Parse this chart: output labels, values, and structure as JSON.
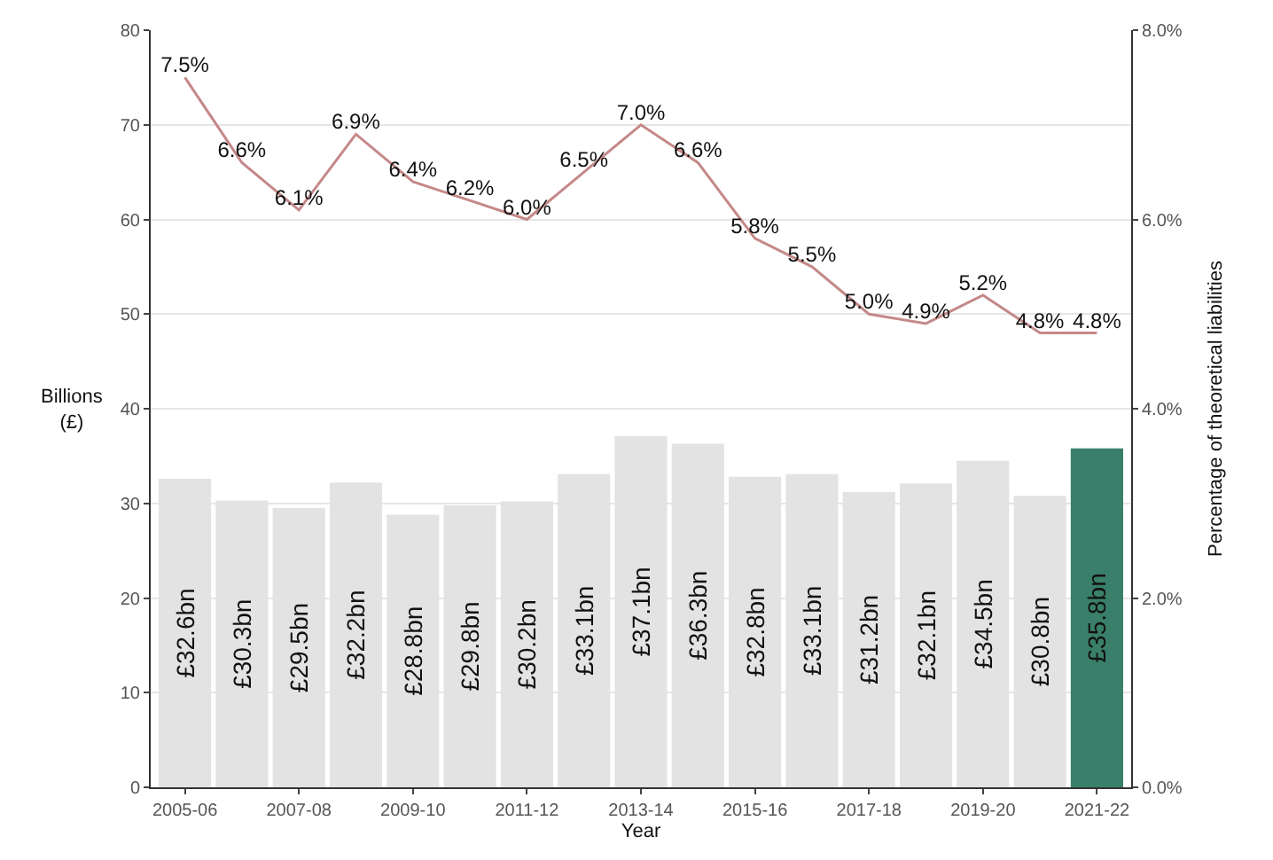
{
  "chart_data": {
    "type": "bar",
    "xlabel": "Year",
    "ylabel": "Billions\n(£)",
    "y2label": "Percentage of theoretical liabilities",
    "categories": [
      "2005-06",
      null,
      "2007-08",
      null,
      "2009-10",
      null,
      "2011-12",
      null,
      "2013-14",
      null,
      "2015-16",
      null,
      "2017-18",
      null,
      "2019-20",
      null,
      "2021-22"
    ],
    "series": [
      {
        "colors": [
          "#e3e3e3",
          "#e3e3e3",
          "#e3e3e3",
          "#e3e3e3",
          "#e3e3e3",
          "#e3e3e3",
          "#e3e3e3",
          "#e3e3e3",
          "#e3e3e3",
          "#e3e3e3",
          "#e3e3e3",
          "#e3e3e3",
          "#e3e3e3",
          "#e3e3e3",
          "#e3e3e3",
          "#e3e3e3",
          "#3a7f6a"
        ],
        "values": [
          32.6,
          30.3,
          29.5,
          32.2,
          28.8,
          29.8,
          30.2,
          33.1,
          37.1,
          36.3,
          32.8,
          33.1,
          31.2,
          32.1,
          34.5,
          30.8,
          35.8
        ],
        "value_labels": [
          "£32.6bn",
          "£30.3bn",
          "£29.5bn",
          "£32.2bn",
          "£28.8bn",
          "£29.8bn",
          "£30.2bn",
          "£33.1bn",
          "£37.1bn",
          "£36.3bn",
          "£32.8bn",
          "£33.1bn",
          "£31.2bn",
          "£32.1bn",
          "£34.5bn",
          "£30.8bn",
          "£35.8bn"
        ]
      },
      {
        "type": "line",
        "axis": "y2",
        "color": "#c48888",
        "values": [
          7.5,
          6.6,
          6.1,
          6.9,
          6.4,
          6.2,
          6.0,
          6.5,
          7.0,
          6.6,
          5.8,
          5.5,
          5.0,
          4.9,
          5.2,
          4.8,
          4.8
        ],
        "value_labels": [
          "7.5%",
          "6.6%",
          "6.1%",
          "6.9%",
          "6.4%",
          "6.2%",
          "6.0%",
          "6.5%",
          "7.0%",
          "6.6%",
          "5.8%",
          "5.5%",
          "5.0%",
          "4.9%",
          "5.2%",
          "4.8%",
          "4.8%"
        ]
      }
    ],
    "ylim": [
      0,
      80
    ],
    "yticks": [
      0,
      10,
      20,
      30,
      40,
      50,
      60,
      70,
      80
    ],
    "y2lim": [
      0,
      8
    ],
    "y2ticks": [
      {
        "value": 0,
        "label": "0.0%"
      },
      {
        "value": 2,
        "label": "2.0%"
      },
      {
        "value": 4,
        "label": "4.0%"
      },
      {
        "value": 6,
        "label": "6.0%"
      },
      {
        "value": 8,
        "label": "8.0%"
      }
    ],
    "grid": "y",
    "marker": "none",
    "line_style": "solid"
  }
}
